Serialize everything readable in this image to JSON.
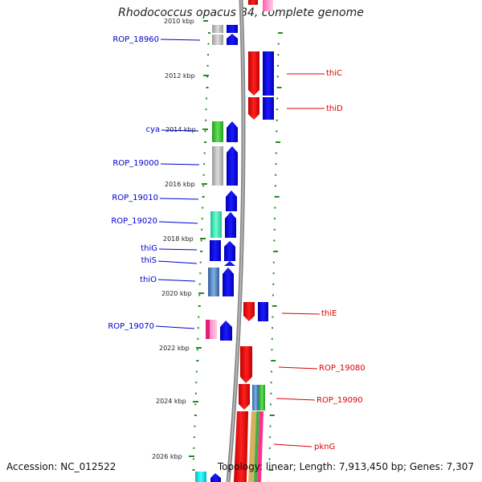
{
  "title": "Rhodococcus opacus B4, complete genome",
  "footer": {
    "accession": "Accession: NC_012522",
    "topology": "Topology: linear; Length: 7,913,450 bp; Genes: 7,307"
  },
  "colors": {
    "forward_label": "#0000cc",
    "reverse_label": "#dd0000",
    "backbone": "#888888",
    "tick": "#228b22"
  },
  "scale": {
    "labels": [
      "2010 kbp",
      "2012 kbp",
      "2014 kbp",
      "2016 kbp",
      "2018 kbp",
      "2020 kbp",
      "2022 kbp",
      "2024 kbp",
      "2026 kbp"
    ]
  },
  "gene_labels": {
    "left": [
      "ROP_18960",
      "cya",
      "ROP_19000",
      "ROP_19010",
      "ROP_19020",
      "thiG",
      "thiS",
      "thiO",
      "ROP_19070"
    ],
    "right": [
      "thiC",
      "thiD",
      "thiE",
      "ROP_19080",
      "ROP_19090",
      "pknG"
    ]
  }
}
